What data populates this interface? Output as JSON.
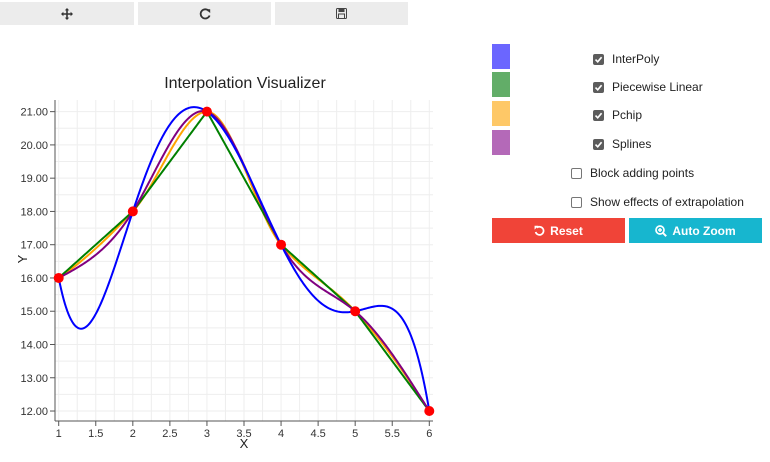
{
  "toolbar": {
    "buttons": [
      {
        "icon": "move-icon"
      },
      {
        "icon": "refresh-icon"
      },
      {
        "icon": "save-icon"
      }
    ]
  },
  "controls": {
    "series_toggles": [
      {
        "label": "InterPoly",
        "color": "#6b66ff",
        "checked": true
      },
      {
        "label": "Piecewise Linear",
        "color": "#62ad68",
        "checked": true
      },
      {
        "label": "Pchip",
        "color": "#fec867",
        "checked": true
      },
      {
        "label": "Splines",
        "color": "#b469b8",
        "checked": true
      }
    ],
    "options": [
      {
        "label": "Block adding points",
        "checked": false
      },
      {
        "label": "Show effects of extrapolation",
        "checked": false
      }
    ],
    "reset_label": "Reset",
    "reset_color": "#f04438",
    "autozoom_label": "Auto Zoom",
    "autozoom_color": "#17b6cf"
  },
  "chart_data": {
    "type": "line",
    "title": "Interpolation Visualizer",
    "xlabel": "X",
    "ylabel": "Y",
    "xlim": [
      0.95,
      6.05
    ],
    "ylim": [
      11.7,
      21.35
    ],
    "xticks": [
      "1",
      "1.5",
      "2",
      "2.5",
      "3",
      "3.5",
      "4",
      "4.5",
      "5",
      "5.5",
      "6"
    ],
    "yticks": [
      "12.00",
      "13.00",
      "14.00",
      "15.00",
      "16.00",
      "17.00",
      "18.00",
      "19.00",
      "20.00",
      "21.00"
    ],
    "grid": true,
    "points": [
      {
        "x": 1,
        "y": 16
      },
      {
        "x": 2,
        "y": 18
      },
      {
        "x": 3,
        "y": 21
      },
      {
        "x": 4,
        "y": 17
      },
      {
        "x": 5,
        "y": 15
      },
      {
        "x": 6,
        "y": 12
      }
    ],
    "point_color": "#ff0000",
    "series": [
      {
        "method": "interpoly",
        "color": "#0000ff"
      },
      {
        "method": "linear",
        "color": "#008000"
      },
      {
        "method": "pchip",
        "color": "#ffa500"
      },
      {
        "method": "spline",
        "color": "#800080"
      }
    ]
  }
}
